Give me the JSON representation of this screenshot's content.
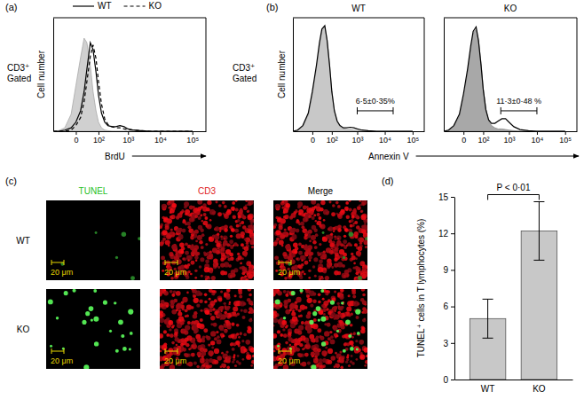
{
  "chart_data": [
    {
      "type": "line",
      "panel": "(a)",
      "side_label": [
        "CD3⁺",
        "Gated"
      ],
      "xlabel": "BrdU",
      "ylabel": "Cell number",
      "log": "x",
      "tick_labels": "x",
      "legend": "top",
      "x": [
        -100,
        -60,
        -30,
        -10,
        0,
        10,
        20,
        30,
        45,
        60,
        80,
        100,
        130,
        170,
        220,
        300,
        400,
        550,
        750,
        1000,
        1500,
        2500,
        5000,
        10000,
        30000,
        100000
      ],
      "xlim": [
        -100,
        262144
      ],
      "xticks": [
        0,
        {
          "value": 100,
          "label": "10²"
        },
        {
          "value": 1000,
          "label": "10³"
        },
        {
          "value": 10000,
          "label": "10⁴"
        },
        {
          "value": 100000,
          "label": "10⁵"
        }
      ],
      "ylim": [
        0,
        100
      ],
      "series": [
        {
          "color": "#d0d0d0",
          "type": "area",
          "values": [
            0,
            0.5,
            3,
            15,
            40,
            65,
            82,
            78,
            58,
            35,
            18,
            8,
            3,
            1,
            0.5,
            0,
            0,
            0,
            0,
            0,
            0,
            0,
            0,
            0,
            0,
            0
          ]
        },
        {
          "name": "WT",
          "color": "#000000",
          "type": "line",
          "line_style": "solid",
          "values": [
            0,
            0,
            1,
            3,
            8,
            18,
            35,
            55,
            78,
            72,
            52,
            32,
            16,
            8,
            5,
            4,
            4,
            5,
            4,
            2,
            1,
            0.5,
            0,
            0,
            0,
            0
          ]
        },
        {
          "name": "KO",
          "color": "#000000",
          "type": "line",
          "line_style": "dashed",
          "values": [
            0,
            0,
            0,
            1,
            5,
            12,
            26,
            44,
            66,
            76,
            64,
            44,
            24,
            11,
            6,
            4,
            3,
            3,
            2,
            1.5,
            1,
            0.5,
            0,
            0,
            0,
            0
          ]
        }
      ]
    },
    {
      "type": "line",
      "panel": "(b)",
      "title": "WT",
      "side_label": [
        "CD3⁺",
        "Gated"
      ],
      "xlabel": "Annexin V",
      "ylabel": "Cell number",
      "log": "x",
      "tick_labels": "x",
      "x": [
        -100,
        -60,
        -30,
        -10,
        0,
        10,
        20,
        30,
        45,
        60,
        80,
        100,
        130,
        170,
        220,
        300,
        400,
        550,
        750,
        1000,
        1500,
        2500,
        5000,
        10000,
        30000,
        100000
      ],
      "xlim": [
        -100,
        262144
      ],
      "xticks": [
        0,
        {
          "value": 100,
          "label": "10²"
        },
        {
          "value": 1000,
          "label": "10³"
        },
        {
          "value": 10000,
          "label": "10⁴"
        },
        {
          "value": 100000,
          "label": "10⁵"
        }
      ],
      "ylim": [
        0,
        100
      ],
      "series": [
        {
          "color": "#c8c8c8",
          "type": "area",
          "values": [
            0,
            1,
            4,
            14,
            32,
            55,
            75,
            88,
            92,
            80,
            58,
            36,
            18,
            8,
            4,
            2,
            1.5,
            1.5,
            1,
            0.5,
            0,
            0,
            0,
            0,
            0,
            0
          ]
        },
        {
          "color": "#000000",
          "type": "line",
          "line_style": "solid",
          "values": [
            0,
            1,
            5,
            16,
            35,
            58,
            78,
            90,
            93,
            80,
            57,
            35,
            18,
            9,
            5,
            3,
            3,
            3.5,
            3,
            2,
            1,
            0.5,
            0,
            0,
            0,
            0
          ]
        }
      ],
      "gate": {
        "x": [
          1000,
          20000
        ],
        "y": 18,
        "label": "6·5±0·35%"
      }
    },
    {
      "type": "line",
      "title": "KO",
      "log": "x",
      "tick_labels": "x",
      "x": [
        -100,
        -60,
        -30,
        -10,
        0,
        10,
        20,
        30,
        45,
        60,
        80,
        100,
        130,
        170,
        220,
        300,
        400,
        550,
        750,
        1000,
        1500,
        2500,
        5000,
        10000,
        30000,
        100000
      ],
      "xlim": [
        -100,
        262144
      ],
      "xticks": [
        0,
        {
          "value": 100,
          "label": "10²"
        },
        {
          "value": 1000,
          "label": "10³"
        },
        {
          "value": 10000,
          "label": "10⁴"
        },
        {
          "value": 100000,
          "label": "10⁵"
        }
      ],
      "ylim": [
        0,
        100
      ],
      "series": [
        {
          "color": "#a8a8a8",
          "type": "area",
          "values": [
            0,
            1,
            4,
            13,
            30,
            52,
            72,
            86,
            90,
            80,
            60,
            38,
            20,
            9,
            5,
            3,
            2,
            2,
            1.5,
            1,
            0.5,
            0,
            0,
            0,
            0,
            0
          ]
        },
        {
          "color": "#000000",
          "type": "line",
          "line_style": "solid",
          "values": [
            0,
            1,
            5,
            15,
            33,
            55,
            75,
            88,
            92,
            80,
            58,
            37,
            19,
            10,
            7,
            7,
            9,
            11,
            11,
            8,
            4,
            1.5,
            0.5,
            0,
            0,
            0
          ]
        }
      ],
      "gate": {
        "x": [
          500,
          10000
        ],
        "y": 18,
        "label": "11·3±0·48 %"
      }
    },
    {
      "type": "bar",
      "panel": "(d)",
      "categories": [
        "WT",
        "KO"
      ],
      "values": [
        5,
        12.2
      ],
      "errors": [
        1.6,
        2.4
      ],
      "color": "#c8c8c8",
      "ylabel": "TUNEL⁺ cells in T lymphocytes (%)",
      "ylim": [
        0,
        15
      ],
      "yticks": [
        0,
        3,
        6,
        9,
        12,
        15
      ],
      "annotation": "P < 0·01"
    }
  ],
  "images": {
    "panel": "(c)",
    "columns": [
      "TUNEL",
      "CD3",
      "Merge"
    ],
    "rows": [
      "WT",
      "KO"
    ],
    "scale_bar": "20 μm"
  }
}
